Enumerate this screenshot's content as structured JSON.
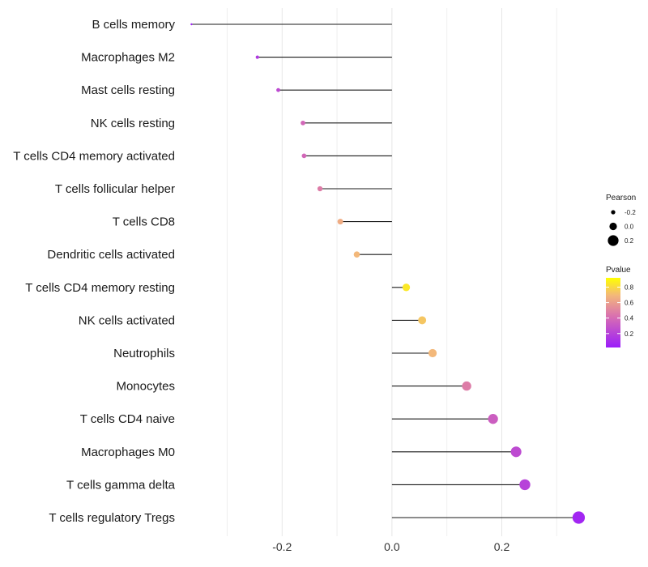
{
  "chart_data": {
    "type": "lollipop",
    "categories": [
      "B cells memory",
      "Macrophages M2",
      "Mast cells resting",
      "NK cells resting",
      "T cells CD4 memory activated",
      "T cells follicular helper",
      "T cells CD8",
      "Dendritic cells activated",
      "T cells CD4 memory resting",
      "NK cells activated",
      "Neutrophils",
      "Monocytes",
      "T cells CD4 naive",
      "Macrophages M0",
      "T cells gamma delta",
      "T cells regulatory  Tregs"
    ],
    "values": [
      -0.365,
      -0.245,
      -0.207,
      -0.162,
      -0.16,
      -0.131,
      -0.094,
      -0.064,
      0.026,
      0.055,
      0.074,
      0.136,
      0.184,
      0.226,
      0.242,
      0.34
    ],
    "pvalues": [
      0.02,
      0.15,
      0.25,
      0.4,
      0.4,
      0.5,
      0.7,
      0.75,
      0.92,
      0.8,
      0.75,
      0.5,
      0.35,
      0.25,
      0.2,
      0.05
    ],
    "xlim": [
      -0.37,
      0.36
    ],
    "x_ticks": [
      -0.2,
      0.0,
      0.2
    ],
    "x_tick_labels": [
      "-0.2",
      "0.0",
      "0.2"
    ],
    "xlabel": "",
    "ylabel": "",
    "grid": true,
    "legend": {
      "size_title": "Pearson",
      "size_entries": [
        {
          "label": "-0.2",
          "value": -0.2
        },
        {
          "label": "0.0",
          "value": 0.0
        },
        {
          "label": "0.2",
          "value": 0.2
        }
      ],
      "color_title": "Pvalue",
      "color_ticks": [
        {
          "label": "0.8",
          "value": 0.8
        },
        {
          "label": "0.6",
          "value": 0.6
        },
        {
          "label": "0.4",
          "value": 0.4
        },
        {
          "label": "0.2",
          "value": 0.2
        }
      ],
      "color_low": "#9b1dfa",
      "color_mid": "#d970b0",
      "color_high": "#ffff00",
      "placement": "right"
    }
  }
}
